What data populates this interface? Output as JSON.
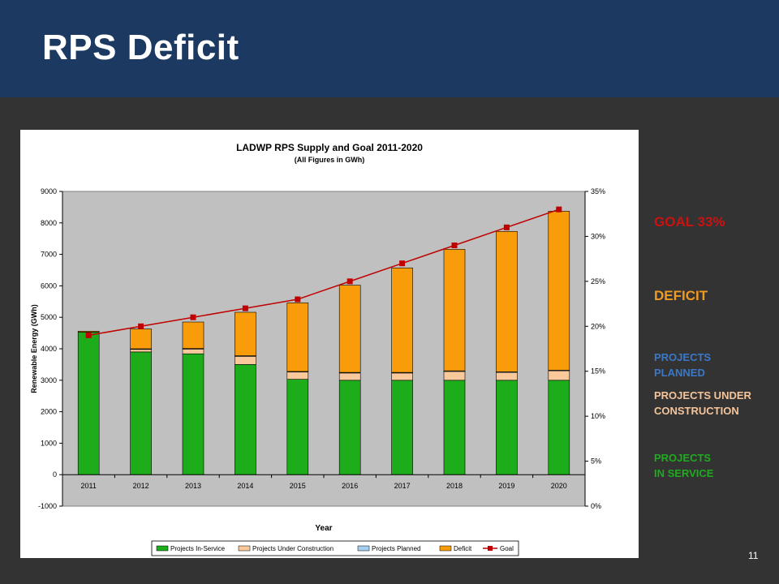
{
  "slide": {
    "title": "RPS Deficit",
    "page_number": "11"
  },
  "side_labels": {
    "goal": "GOAL 33%",
    "deficit": "DEFICIT",
    "planned_1": "PROJECTS",
    "planned_2": "PLANNED",
    "construction_1": "PROJECTS UNDER",
    "construction_2": "CONSTRUCTION",
    "service_1": "PROJECTS",
    "service_2": "IN SERVICE"
  },
  "colors": {
    "header": "#1c3a61",
    "background": "#333333",
    "goal_label": "#cc1111",
    "deficit_label": "#f09a22",
    "planned_label": "#3a78c8",
    "construction_label": "#f5c49a",
    "service_label": "#1faa1f",
    "in_service": "#1ead1a",
    "under_construction": "#f9c89b",
    "planned": "#a5cff1",
    "deficit": "#f99c0a",
    "goal": "#c00000",
    "plot_area": "#c0c0c0"
  },
  "chart_data": {
    "type": "bar",
    "stacked": true,
    "title": "LADWP RPS Supply and Goal 2011-2020",
    "subtitle": "(All Figures in GWh)",
    "xlabel": "Year",
    "ylabel": "Renewable Energy (GWh)",
    "ylim": [
      -1000,
      9000
    ],
    "y_ticks": [
      "-1000",
      "0",
      "1000",
      "2000",
      "3000",
      "4000",
      "5000",
      "6000",
      "7000",
      "8000",
      "9000"
    ],
    "y2lim": [
      0,
      35
    ],
    "y2_ticks": [
      "0%",
      "5%",
      "10%",
      "15%",
      "20%",
      "25%",
      "30%",
      "35%"
    ],
    "grid": "none",
    "legend_position": "bottom",
    "categories": [
      "2011",
      "2012",
      "2013",
      "2014",
      "2015",
      "2016",
      "2017",
      "2018",
      "2019",
      "2020"
    ],
    "series": [
      {
        "name": "Projects In-Service",
        "values": [
          4530,
          3900,
          3840,
          3500,
          3030,
          3000,
          3000,
          3000,
          3000,
          3000
        ]
      },
      {
        "name": "Projects Under Construction",
        "values": [
          0,
          80,
          150,
          260,
          230,
          230,
          230,
          280,
          250,
          300
        ]
      },
      {
        "name": "Projects Planned",
        "values": [
          0,
          20,
          20,
          20,
          20,
          20,
          20,
          20,
          20,
          20
        ]
      },
      {
        "name": "Deficit",
        "values": [
          30,
          630,
          840,
          1380,
          2180,
          2770,
          3320,
          3860,
          4460,
          5050
        ]
      }
    ],
    "goal": {
      "name": "Goal",
      "axis": "secondary",
      "values": [
        19,
        20,
        21,
        22,
        23,
        25,
        27,
        29,
        31,
        33
      ]
    }
  }
}
